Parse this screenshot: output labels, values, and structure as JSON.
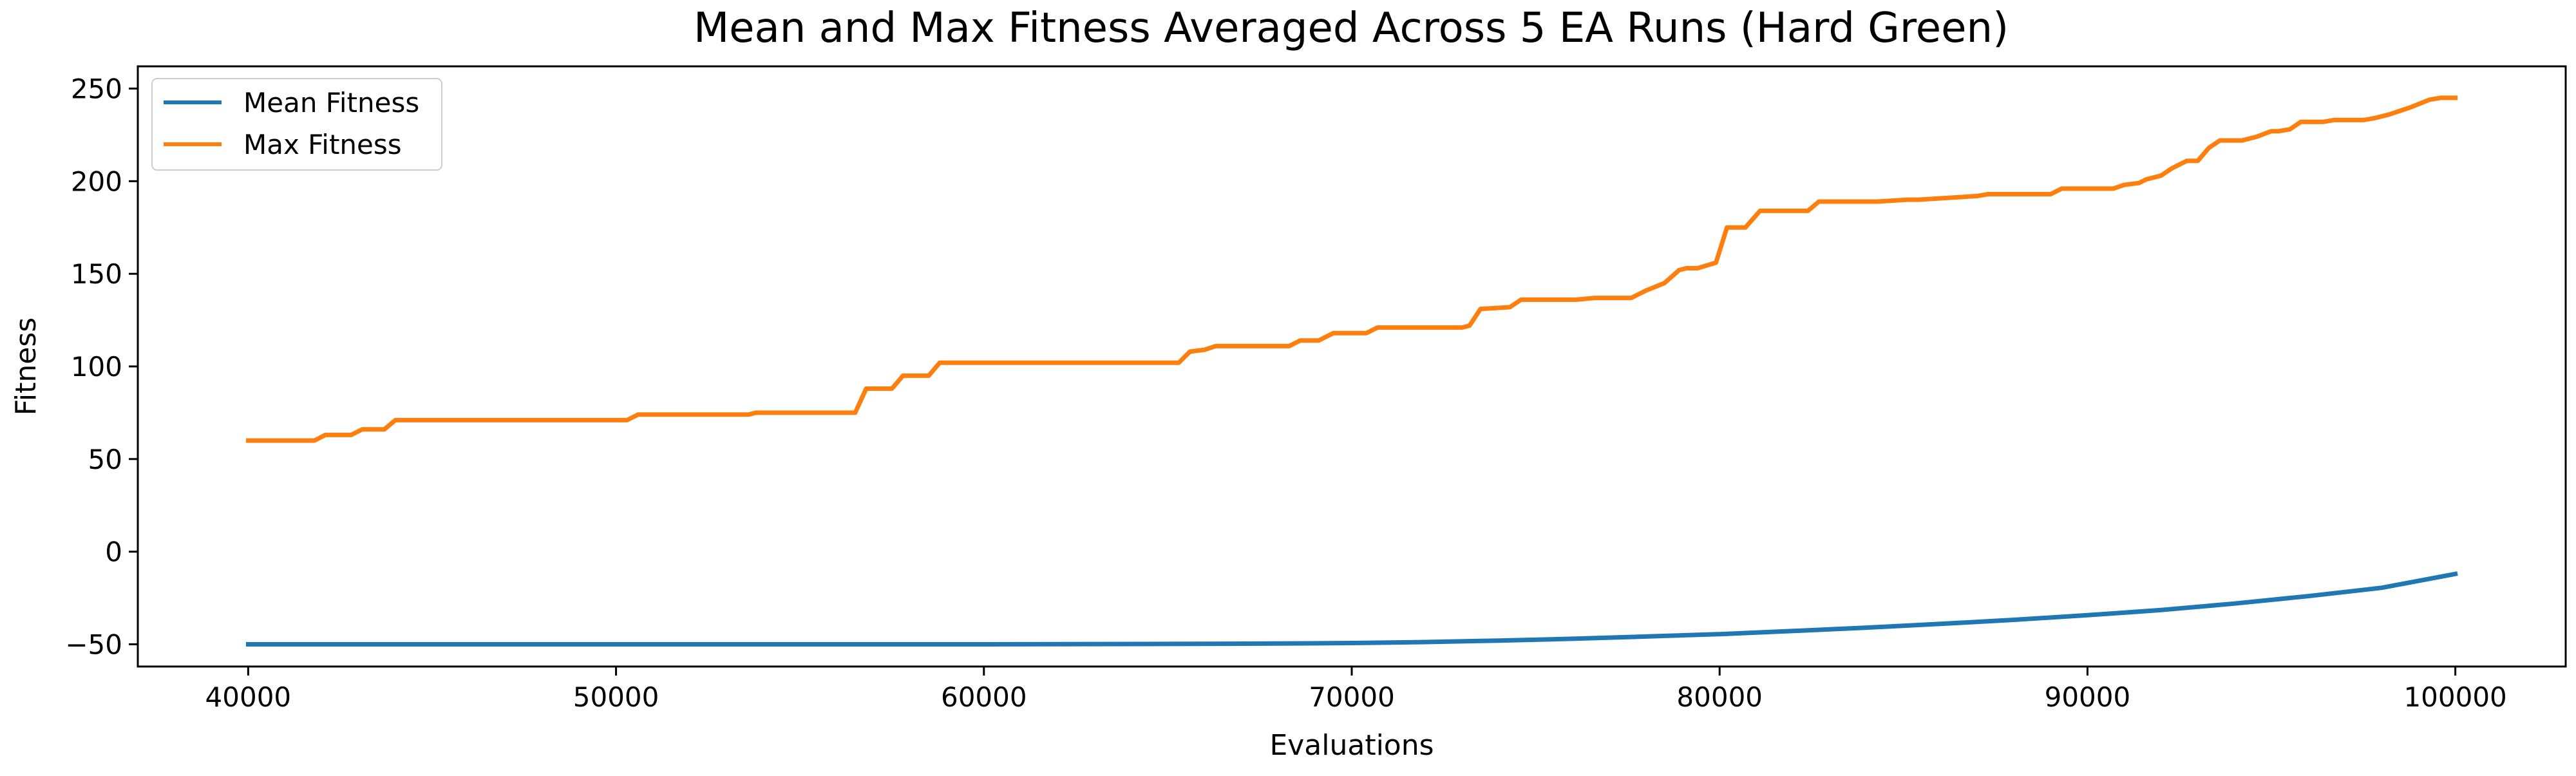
{
  "chart_data": {
    "type": "line",
    "title": "Mean and Max Fitness Averaged Across 5 EA Runs (Hard Green)",
    "xlabel": "Evaluations",
    "ylabel": "Fitness",
    "xlim": [
      37000,
      103000
    ],
    "ylim": [
      -62,
      262
    ],
    "x_ticks": [
      40000,
      50000,
      60000,
      70000,
      80000,
      90000,
      100000
    ],
    "y_ticks": [
      -50,
      0,
      50,
      100,
      150,
      200,
      250
    ],
    "x_tick_labels": [
      "40000",
      "50000",
      "60000",
      "70000",
      "80000",
      "90000",
      "100000"
    ],
    "y_tick_labels": [
      "−50",
      "0",
      "50",
      "100",
      "150",
      "200",
      "250"
    ],
    "grid": false,
    "legend_position": "top-left",
    "series": [
      {
        "name": "Mean Fitness",
        "color": "#1f77b4",
        "x": [
          40000,
          45000,
          50000,
          55000,
          60000,
          65000,
          68000,
          70000,
          72000,
          74000,
          76000,
          78000,
          80000,
          82000,
          84000,
          86000,
          88000,
          90000,
          92000,
          94000,
          96000,
          98000,
          100000
        ],
        "y": [
          -50,
          -50,
          -50,
          -50,
          -50,
          -49.8,
          -49.6,
          -49.3,
          -48.8,
          -48,
          -47,
          -45.8,
          -44.5,
          -42.8,
          -41,
          -39,
          -36.8,
          -34.3,
          -31.5,
          -28,
          -24,
          -19.5,
          -12
        ]
      },
      {
        "name": "Max Fitness",
        "color": "#ff7f0e",
        "x": [
          40000,
          41800,
          42100,
          42800,
          43100,
          43700,
          44000,
          50300,
          50600,
          53600,
          53800,
          56500,
          56800,
          57500,
          57800,
          58500,
          58800,
          65300,
          65600,
          66000,
          66300,
          68300,
          68600,
          69100,
          69500,
          70400,
          70700,
          73000,
          73200,
          73500,
          74300,
          74600,
          76100,
          76600,
          77600,
          78000,
          78500,
          78900,
          79100,
          79400,
          79900,
          80200,
          80700,
          81100,
          82400,
          82700,
          84300,
          85100,
          85400,
          87000,
          87300,
          89000,
          89300,
          90700,
          91000,
          91400,
          91600,
          92000,
          92300,
          92700,
          93000,
          93300,
          93600,
          94200,
          94600,
          95000,
          95200,
          95500,
          95800,
          96400,
          96700,
          97500,
          97800,
          98200,
          98500,
          98800,
          99300,
          99600,
          100000
        ],
        "y": [
          60,
          60,
          63,
          63,
          66,
          66,
          71,
          71,
          74,
          74,
          75,
          75,
          88,
          88,
          95,
          95,
          102,
          102,
          108,
          109,
          111,
          111,
          114,
          114,
          118,
          118,
          121,
          121,
          122,
          131,
          132,
          136,
          136,
          137,
          137,
          141,
          145,
          152,
          153,
          153,
          156,
          175,
          175,
          184,
          184,
          189,
          189,
          190,
          190,
          192,
          193,
          193,
          196,
          196,
          198,
          199,
          201,
          203,
          207,
          211,
          211,
          218,
          222,
          222,
          224,
          227,
          227,
          228,
          232,
          232,
          233,
          233,
          234,
          236,
          238,
          240,
          244,
          245,
          245
        ]
      }
    ]
  }
}
